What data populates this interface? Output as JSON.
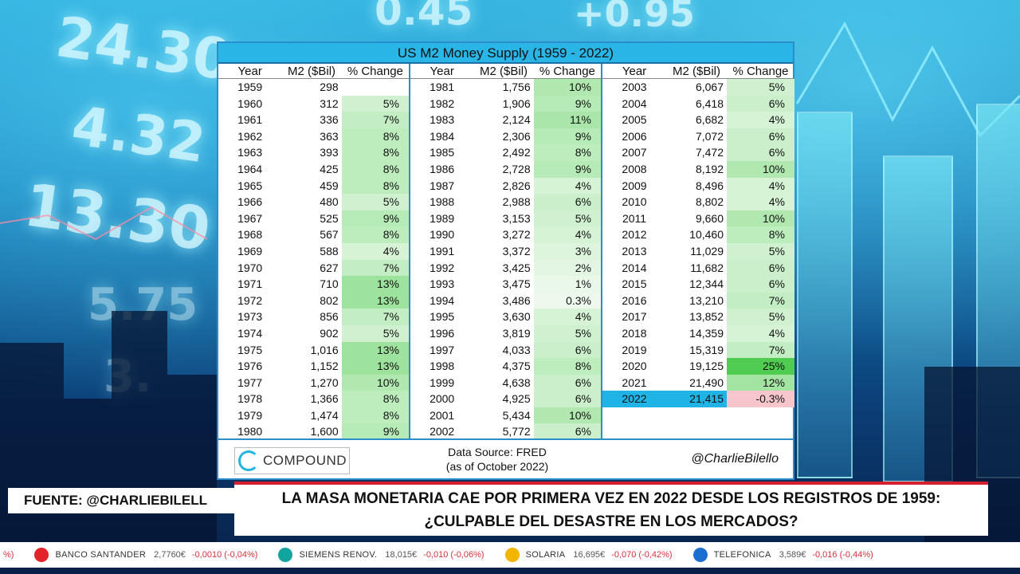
{
  "background": {
    "numbers": [
      "24.30",
      "4.32",
      "13.30",
      "0.45",
      "+0.95",
      "5.75",
      "3."
    ]
  },
  "card": {
    "title": "US M2 Money Supply (1959 - 2022)",
    "headers": {
      "year": "Year",
      "m2": "M2 ($Bil)",
      "pct": "% Change"
    },
    "columns": [
      [
        {
          "year": "1959",
          "m2": "298",
          "pct": "",
          "v": null
        },
        {
          "year": "1960",
          "m2": "312",
          "pct": "5%",
          "v": 5
        },
        {
          "year": "1961",
          "m2": "336",
          "pct": "7%",
          "v": 7
        },
        {
          "year": "1962",
          "m2": "363",
          "pct": "8%",
          "v": 8
        },
        {
          "year": "1963",
          "m2": "393",
          "pct": "8%",
          "v": 8
        },
        {
          "year": "1964",
          "m2": "425",
          "pct": "8%",
          "v": 8
        },
        {
          "year": "1965",
          "m2": "459",
          "pct": "8%",
          "v": 8
        },
        {
          "year": "1966",
          "m2": "480",
          "pct": "5%",
          "v": 5
        },
        {
          "year": "1967",
          "m2": "525",
          "pct": "9%",
          "v": 9
        },
        {
          "year": "1968",
          "m2": "567",
          "pct": "8%",
          "v": 8
        },
        {
          "year": "1969",
          "m2": "588",
          "pct": "4%",
          "v": 4
        },
        {
          "year": "1970",
          "m2": "627",
          "pct": "7%",
          "v": 7
        },
        {
          "year": "1971",
          "m2": "710",
          "pct": "13%",
          "v": 13
        },
        {
          "year": "1972",
          "m2": "802",
          "pct": "13%",
          "v": 13
        },
        {
          "year": "1973",
          "m2": "856",
          "pct": "7%",
          "v": 7
        },
        {
          "year": "1974",
          "m2": "902",
          "pct": "5%",
          "v": 5
        },
        {
          "year": "1975",
          "m2": "1,016",
          "pct": "13%",
          "v": 13
        },
        {
          "year": "1976",
          "m2": "1,152",
          "pct": "13%",
          "v": 13
        },
        {
          "year": "1977",
          "m2": "1,270",
          "pct": "10%",
          "v": 10
        },
        {
          "year": "1978",
          "m2": "1,366",
          "pct": "8%",
          "v": 8
        },
        {
          "year": "1979",
          "m2": "1,474",
          "pct": "8%",
          "v": 8
        },
        {
          "year": "1980",
          "m2": "1,600",
          "pct": "9%",
          "v": 9
        }
      ],
      [
        {
          "year": "1981",
          "m2": "1,756",
          "pct": "10%",
          "v": 10
        },
        {
          "year": "1982",
          "m2": "1,906",
          "pct": "9%",
          "v": 9
        },
        {
          "year": "1983",
          "m2": "2,124",
          "pct": "11%",
          "v": 11
        },
        {
          "year": "1984",
          "m2": "2,306",
          "pct": "9%",
          "v": 9
        },
        {
          "year": "1985",
          "m2": "2,492",
          "pct": "8%",
          "v": 8
        },
        {
          "year": "1986",
          "m2": "2,728",
          "pct": "9%",
          "v": 9
        },
        {
          "year": "1987",
          "m2": "2,826",
          "pct": "4%",
          "v": 4
        },
        {
          "year": "1988",
          "m2": "2,988",
          "pct": "6%",
          "v": 6
        },
        {
          "year": "1989",
          "m2": "3,153",
          "pct": "5%",
          "v": 5
        },
        {
          "year": "1990",
          "m2": "3,272",
          "pct": "4%",
          "v": 4
        },
        {
          "year": "1991",
          "m2": "3,372",
          "pct": "3%",
          "v": 3
        },
        {
          "year": "1992",
          "m2": "3,425",
          "pct": "2%",
          "v": 2
        },
        {
          "year": "1993",
          "m2": "3,475",
          "pct": "1%",
          "v": 1
        },
        {
          "year": "1994",
          "m2": "3,486",
          "pct": "0.3%",
          "v": 0.3
        },
        {
          "year": "1995",
          "m2": "3,630",
          "pct": "4%",
          "v": 4
        },
        {
          "year": "1996",
          "m2": "3,819",
          "pct": "5%",
          "v": 5
        },
        {
          "year": "1997",
          "m2": "4,033",
          "pct": "6%",
          "v": 6
        },
        {
          "year": "1998",
          "m2": "4,375",
          "pct": "8%",
          "v": 8
        },
        {
          "year": "1999",
          "m2": "4,638",
          "pct": "6%",
          "v": 6
        },
        {
          "year": "2000",
          "m2": "4,925",
          "pct": "6%",
          "v": 6
        },
        {
          "year": "2001",
          "m2": "5,434",
          "pct": "10%",
          "v": 10
        },
        {
          "year": "2002",
          "m2": "5,772",
          "pct": "6%",
          "v": 6
        }
      ],
      [
        {
          "year": "2003",
          "m2": "6,067",
          "pct": "5%",
          "v": 5
        },
        {
          "year": "2004",
          "m2": "6,418",
          "pct": "6%",
          "v": 6
        },
        {
          "year": "2005",
          "m2": "6,682",
          "pct": "4%",
          "v": 4
        },
        {
          "year": "2006",
          "m2": "7,072",
          "pct": "6%",
          "v": 6
        },
        {
          "year": "2007",
          "m2": "7,472",
          "pct": "6%",
          "v": 6
        },
        {
          "year": "2008",
          "m2": "8,192",
          "pct": "10%",
          "v": 10
        },
        {
          "year": "2009",
          "m2": "8,496",
          "pct": "4%",
          "v": 4
        },
        {
          "year": "2010",
          "m2": "8,802",
          "pct": "4%",
          "v": 4
        },
        {
          "year": "2011",
          "m2": "9,660",
          "pct": "10%",
          "v": 10
        },
        {
          "year": "2012",
          "m2": "10,460",
          "pct": "8%",
          "v": 8
        },
        {
          "year": "2013",
          "m2": "11,029",
          "pct": "5%",
          "v": 5
        },
        {
          "year": "2014",
          "m2": "11,682",
          "pct": "6%",
          "v": 6
        },
        {
          "year": "2015",
          "m2": "12,344",
          "pct": "6%",
          "v": 6
        },
        {
          "year": "2016",
          "m2": "13,210",
          "pct": "7%",
          "v": 7
        },
        {
          "year": "2017",
          "m2": "13,852",
          "pct": "5%",
          "v": 5
        },
        {
          "year": "2018",
          "m2": "14,359",
          "pct": "4%",
          "v": 4
        },
        {
          "year": "2019",
          "m2": "15,319",
          "pct": "7%",
          "v": 7
        },
        {
          "year": "2020",
          "m2": "19,125",
          "pct": "25%",
          "v": 25
        },
        {
          "year": "2021",
          "m2": "21,490",
          "pct": "12%",
          "v": 12
        },
        {
          "year": "2022",
          "m2": "21,415",
          "pct": "-0.3%",
          "v": -0.3,
          "highlight": true
        }
      ]
    ],
    "footer": {
      "logo_text": "COMPOUND",
      "source_line1": "Data Source: FRED",
      "source_line2": "(as of October 2022)",
      "handle": "@CharlieBilello"
    }
  },
  "colors": {
    "accent": "#29b6e6",
    "negative": "#f7c6cc",
    "headline_border": "#d52030",
    "ticker_negative": "#d8323c"
  },
  "lower_third": {
    "source_label": "FUENTE: @CHARLIEBILELL",
    "headline_line1": "LA MASA MONETARIA CAE POR PRIMERA VEZ EN 2022 DESDE LOS REGISTROS DE 1959:",
    "headline_line2": "¿CULPABLE DEL DESASTRE EN LOS MERCADOS?"
  },
  "ticker": [
    {
      "name": "",
      "price": "",
      "change": "%)",
      "icon": "",
      "color": "#ffffff"
    },
    {
      "name": "BANCO SANTANDER",
      "price": "2,7760€",
      "change": "-0,0010 (-0,04%)",
      "icon": "santander-flame-icon",
      "color": "#e2232a"
    },
    {
      "name": "SIEMENS RENOV.",
      "price": "18,015€",
      "change": "-0,010 (-0,06%)",
      "icon": "siemens-sg-icon",
      "color": "#12a5a0"
    },
    {
      "name": "SOLARIA",
      "price": "16,695€",
      "change": "-0,070 (-0,42%)",
      "icon": "solaria-sun-icon",
      "color": "#f3b500"
    },
    {
      "name": "TELEFONICA",
      "price": "3,589€",
      "change": "-0,016 (-0,44%)",
      "icon": "telefonica-t-icon",
      "color": "#1c6fd1"
    }
  ]
}
